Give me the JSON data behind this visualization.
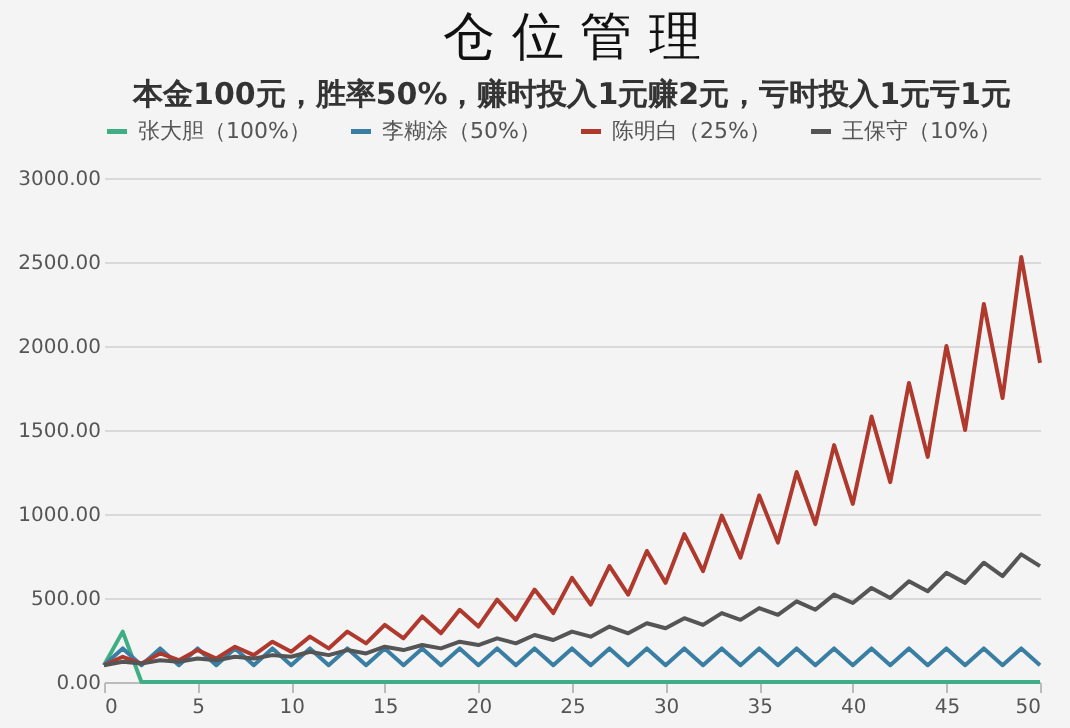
{
  "chart_data": {
    "type": "line",
    "title": "仓 位 管 理",
    "subtitle": "本金100元，胜率50%，赚时投入1元赚2元，亏时投入1元亏1元",
    "x": [
      0,
      1,
      2,
      3,
      4,
      5,
      6,
      7,
      8,
      9,
      10,
      11,
      12,
      13,
      14,
      15,
      16,
      17,
      18,
      19,
      20,
      21,
      22,
      23,
      24,
      25,
      26,
      27,
      28,
      29,
      30,
      31,
      32,
      33,
      34,
      35,
      36,
      37,
      38,
      39,
      40,
      41,
      42,
      43,
      44,
      45,
      46,
      47,
      48,
      49,
      50
    ],
    "xlim": [
      0,
      50
    ],
    "xticks": [
      0,
      5,
      10,
      15,
      20,
      25,
      30,
      35,
      40,
      45,
      50
    ],
    "ylim": [
      0,
      3000
    ],
    "yticks": [
      {
        "value": 0,
        "label": "0.00"
      },
      {
        "value": 500,
        "label": "500.00"
      },
      {
        "value": 1000,
        "label": "1000.00"
      },
      {
        "value": 1500,
        "label": "1500.00"
      },
      {
        "value": 2000,
        "label": "2000.00"
      },
      {
        "value": 2500,
        "label": "2500.00"
      },
      {
        "value": 3000,
        "label": "3000.00"
      }
    ],
    "grid": "y",
    "legend": "top",
    "marker": "none",
    "line_style": "solid",
    "series": [
      {
        "name": "张大胆（100%）",
        "color": "#3fae85",
        "values": [
          100,
          300,
          0,
          0,
          0,
          0,
          0,
          0,
          0,
          0,
          0,
          0,
          0,
          0,
          0,
          0,
          0,
          0,
          0,
          0,
          0,
          0,
          0,
          0,
          0,
          0,
          0,
          0,
          0,
          0,
          0,
          0,
          0,
          0,
          0,
          0,
          0,
          0,
          0,
          0,
          0,
          0,
          0,
          0,
          0,
          0,
          0,
          0,
          0,
          0,
          0
        ]
      },
      {
        "name": "李糊涂（50%）",
        "color": "#3a7fa3",
        "values": [
          100,
          200,
          100,
          200,
          100,
          200,
          100,
          200,
          100,
          200,
          100,
          200,
          100,
          200,
          100,
          200,
          100,
          200,
          100,
          200,
          100,
          200,
          100,
          200,
          100,
          200,
          100,
          200,
          100,
          200,
          100,
          200,
          100,
          200,
          100,
          200,
          100,
          200,
          100,
          200,
          100,
          200,
          100,
          200,
          100,
          200,
          100,
          200,
          100,
          200,
          100
        ]
      },
      {
        "name": "陈明白（25%）",
        "color": "#b0392e",
        "values": [
          100,
          150,
          110,
          170,
          130,
          190,
          140,
          210,
          160,
          240,
          180,
          270,
          200,
          300,
          230,
          340,
          260,
          390,
          290,
          430,
          330,
          490,
          370,
          550,
          410,
          620,
          460,
          690,
          520,
          780,
          590,
          880,
          660,
          990,
          740,
          1110,
          830,
          1250,
          940,
          1410,
          1060,
          1580,
          1190,
          1780,
          1340,
          2000,
          1500,
          2250,
          1690,
          2530,
          1900
        ]
      },
      {
        "name": "王保守（10%）",
        "color": "#555555",
        "values": [
          100,
          120,
          110,
          130,
          120,
          140,
          130,
          150,
          140,
          160,
          150,
          180,
          160,
          190,
          170,
          210,
          190,
          220,
          200,
          240,
          220,
          260,
          230,
          280,
          250,
          300,
          270,
          330,
          290,
          350,
          320,
          380,
          340,
          410,
          370,
          440,
          400,
          480,
          430,
          520,
          470,
          560,
          500,
          600,
          540,
          650,
          590,
          710,
          630,
          760,
          690
        ]
      }
    ]
  }
}
